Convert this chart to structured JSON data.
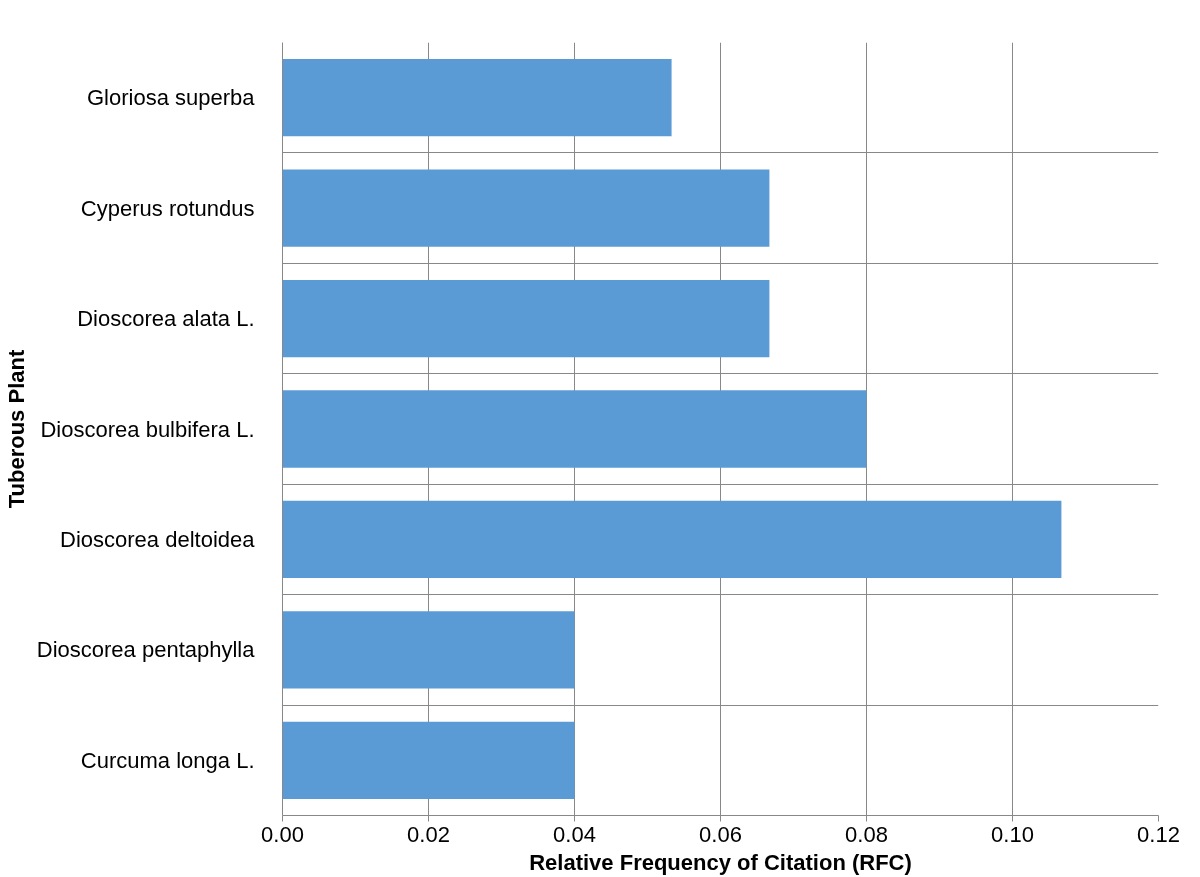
{
  "chart_data": {
    "type": "bar",
    "orientation": "horizontal",
    "xlabel": "Relative Frequency of Citation (RFC)",
    "ylabel": "Tuberous Plant",
    "categories": [
      "Gloriosa superba",
      "Cyperus rotundus",
      "Dioscorea alata L.",
      "Dioscorea bulbifera L.",
      "Dioscorea deltoidea",
      "Dioscorea pentaphylla",
      "Curcuma longa L."
    ],
    "values": [
      0.0533,
      0.0667,
      0.0667,
      0.08,
      0.1067,
      0.04,
      0.04
    ],
    "color": "#5b9bd5",
    "xlim": [
      0,
      0.12
    ],
    "xticks": [
      {
        "value": 0,
        "label": "0.00"
      },
      {
        "value": 0.02,
        "label": "0.02"
      },
      {
        "value": 0.04,
        "label": "0.04"
      },
      {
        "value": 0.06,
        "label": "0.06"
      },
      {
        "value": 0.08,
        "label": "0.08"
      },
      {
        "value": 0.1,
        "label": "0.10"
      },
      {
        "value": 0.12,
        "label": "0.12"
      }
    ],
    "grid": true
  }
}
